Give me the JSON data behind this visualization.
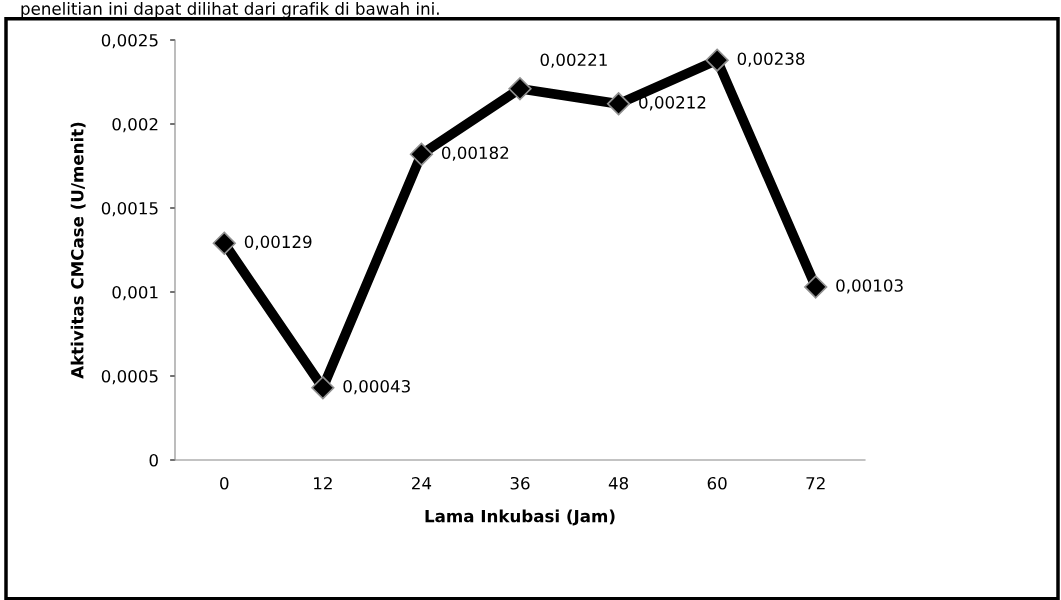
{
  "chart_data": {
    "type": "line",
    "xlabel": "Lama Inkubasi (Jam)",
    "ylabel": "Aktivitas CMCase (U/menit)",
    "annotations": [
      "penelitian ini dapat dilihat dari grafik di bawah ini."
    ],
    "categories": [
      "0",
      "12",
      "24",
      "36",
      "48",
      "60",
      "72"
    ],
    "series": [
      {
        "color": "#000000",
        "values": [
          0.00129,
          0.00043,
          0.00182,
          0.00221,
          0.00212,
          0.00238,
          0.00103
        ],
        "value_labels": [
          "0,00129",
          "0,00043",
          "0,00182",
          "0,00221",
          "0,00212",
          "0,00238",
          "0,00103"
        ]
      }
    ],
    "ylim": [
      0,
      0.0025
    ],
    "yticks": [
      {
        "value": 0,
        "label": "0"
      },
      {
        "value": 0.0005,
        "label": "0,0005"
      },
      {
        "value": 0.001,
        "label": "0,001"
      },
      {
        "value": 0.0015,
        "label": "0,0015"
      },
      {
        "value": 0.002,
        "label": "0,002"
      },
      {
        "value": 0.0025,
        "label": "0,0025"
      }
    ],
    "marker": "diamond",
    "line_style": "solid",
    "grid": false,
    "legend": false
  }
}
